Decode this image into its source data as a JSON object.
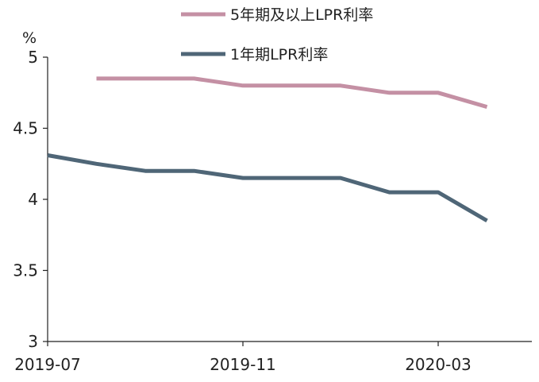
{
  "chart_data": {
    "type": "line",
    "title": "",
    "xlabel": "",
    "ylabel": "%",
    "ylim": [
      3,
      5
    ],
    "yticks": [
      "3",
      "3.5",
      "4",
      "4.5",
      "5"
    ],
    "ytick_values": [
      3,
      3.5,
      4,
      4.5,
      5
    ],
    "x": [
      "2019-07",
      "2019-08",
      "2019-09",
      "2019-10",
      "2019-11",
      "2019-12",
      "2020-01",
      "2020-02",
      "2020-03",
      "2020-04"
    ],
    "xtick_labels": [
      "2019-07",
      "2019-11",
      "2020-03"
    ],
    "xtick_indices": [
      0,
      4,
      8
    ],
    "legend_position": "top-center",
    "grid": false,
    "series": [
      {
        "name": "5年期及以上LPR利率",
        "color": "#c490a4",
        "values": [
          null,
          4.85,
          4.85,
          4.85,
          4.8,
          4.8,
          4.8,
          4.75,
          4.75,
          4.65
        ]
      },
      {
        "name": "1年期LPR利率",
        "color": "#4f6677",
        "values": [
          4.31,
          4.25,
          4.2,
          4.2,
          4.15,
          4.15,
          4.15,
          4.05,
          4.05,
          3.85
        ]
      }
    ]
  }
}
